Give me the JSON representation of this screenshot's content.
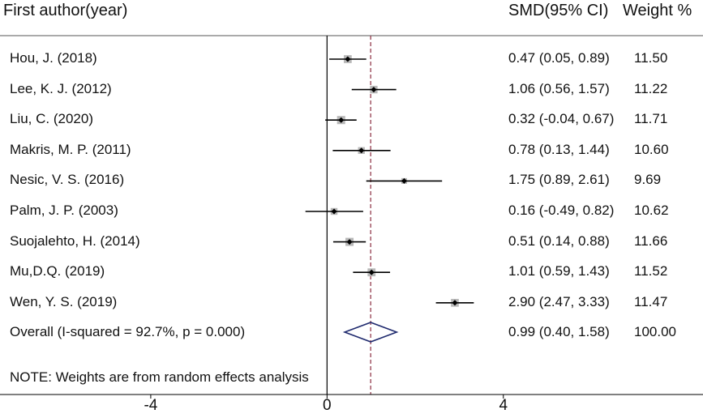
{
  "chart_data": {
    "type": "forest",
    "headers": {
      "study": "First author(year)",
      "estimate": "SMD(95% CI)",
      "weight": "Weight %"
    },
    "studies": [
      {
        "label": "Hou, J. (2018)",
        "smd": 0.47,
        "lower": 0.05,
        "upper": 0.89,
        "ci_text": "0.47 (0.05, 0.89)",
        "weight": 11.5,
        "weight_text": "11.50"
      },
      {
        "label": "Lee, K. J. (2012)",
        "smd": 1.06,
        "lower": 0.56,
        "upper": 1.57,
        "ci_text": "1.06 (0.56, 1.57)",
        "weight": 11.22,
        "weight_text": "11.22"
      },
      {
        "label": "Liu, C. (2020)",
        "smd": 0.32,
        "lower": -0.04,
        "upper": 0.67,
        "ci_text": "0.32 (-0.04, 0.67)",
        "weight": 11.71,
        "weight_text": "11.71"
      },
      {
        "label": "Makris, M. P. (2011)",
        "smd": 0.78,
        "lower": 0.13,
        "upper": 1.44,
        "ci_text": "0.78 (0.13, 1.44)",
        "weight": 10.6,
        "weight_text": "10.60"
      },
      {
        "label": "Nesic, V. S. (2016)",
        "smd": 1.75,
        "lower": 0.89,
        "upper": 2.61,
        "ci_text": "1.75 (0.89, 2.61)",
        "weight": 9.69,
        "weight_text": "9.69"
      },
      {
        "label": "Palm, J. P. (2003)",
        "smd": 0.16,
        "lower": -0.49,
        "upper": 0.82,
        "ci_text": "0.16 (-0.49, 0.82)",
        "weight": 10.62,
        "weight_text": "10.62"
      },
      {
        "label": "Suojalehto, H. (2014)",
        "smd": 0.51,
        "lower": 0.14,
        "upper": 0.88,
        "ci_text": "0.51 (0.14, 0.88)",
        "weight": 11.66,
        "weight_text": "11.66"
      },
      {
        "label": "Mu,D.Q. (2019)",
        "smd": 1.01,
        "lower": 0.59,
        "upper": 1.43,
        "ci_text": "1.01 (0.59, 1.43)",
        "weight": 11.52,
        "weight_text": "11.52"
      },
      {
        "label": "Wen, Y. S. (2019)",
        "smd": 2.9,
        "lower": 2.47,
        "upper": 3.33,
        "ci_text": "2.90 (2.47, 3.33)",
        "weight": 11.47,
        "weight_text": "11.47"
      }
    ],
    "overall": {
      "label": "Overall  (I-squared = 92.7%, p = 0.000)",
      "smd": 0.99,
      "lower": 0.4,
      "upper": 1.58,
      "ci_text": "0.99 (0.40, 1.58)",
      "weight_text": "100.00"
    },
    "note": "NOTE: Weights are from random effects analysis",
    "x_ticks": [
      -4,
      0,
      4
    ],
    "x_tick_labels": [
      "-4",
      "0",
      "4"
    ],
    "xlim": [
      -7.42,
      8.53
    ],
    "null_line": 0,
    "colors": {
      "ci_line": "#000000",
      "point": "#000000",
      "weight_box": "#b8b8b8",
      "overall_diamond": "#1f2a6e",
      "overall_line": "#8b2d3f"
    }
  }
}
